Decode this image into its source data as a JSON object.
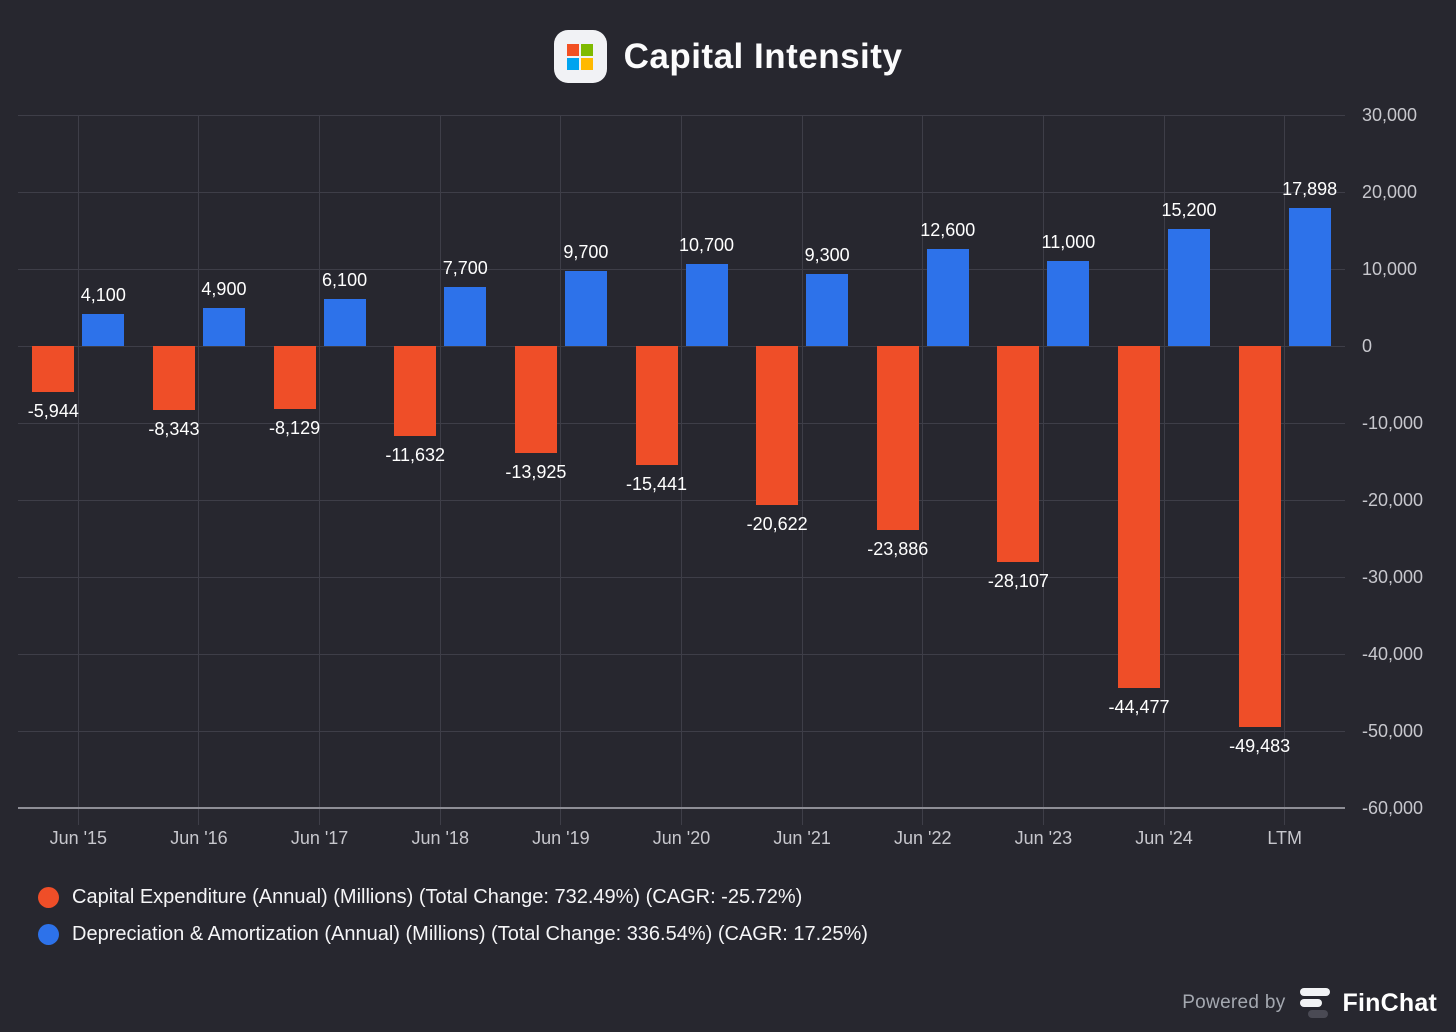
{
  "header": {
    "title": "Capital Intensity",
    "app_icon": "microsoft-logo"
  },
  "colors": {
    "background": "#27272f",
    "grid": "#3e3e48",
    "axis_line": "#8e8e96",
    "axis_text": "#c7c7cd",
    "bar_label_text": "#ffffff",
    "capex_orange": "#ef4e28",
    "da_blue": "#2d72ea",
    "ms_red": "#f25022",
    "ms_green": "#7fba00",
    "ms_blue": "#00a4ef",
    "ms_yellow": "#ffb900"
  },
  "chart_data": {
    "type": "bar",
    "title": "Capital Intensity",
    "categories": [
      "Jun '15",
      "Jun '16",
      "Jun '17",
      "Jun '18",
      "Jun '19",
      "Jun '20",
      "Jun '21",
      "Jun '22",
      "Jun '23",
      "Jun '24",
      "LTM"
    ],
    "series": [
      {
        "name": "Capital Expenditure (Annual) (Millions) (Total Change: 732.49%) (CAGR: -25.72%)",
        "color": "#ef4e28",
        "values": [
          -5944,
          -8343,
          -8129,
          -11632,
          -13925,
          -15441,
          -20622,
          -23886,
          -28107,
          -44477,
          -49483
        ],
        "labels": [
          "-5,944",
          "-8,343",
          "-8,129",
          "-11,632",
          "-13,925",
          "-15,441",
          "-20,622",
          "-23,886",
          "-28,107",
          "-44,477",
          "-49,483"
        ]
      },
      {
        "name": "Depreciation & Amortization (Annual) (Millions) (Total Change: 336.54%) (CAGR: 17.25%)",
        "color": "#2d72ea",
        "values": [
          4100,
          4900,
          6100,
          7700,
          9700,
          10700,
          9300,
          12600,
          11000,
          15200,
          17898
        ],
        "labels": [
          "4,100",
          "4,900",
          "6,100",
          "7,700",
          "9,700",
          "10,700",
          "9,300",
          "12,600",
          "11,000",
          "15,200",
          "17,898"
        ]
      }
    ],
    "ylim": [
      -60000,
      30000
    ],
    "ytick_step": 10000,
    "ytick_labels": [
      "30,000",
      "20,000",
      "10,000",
      "0",
      "-10,000",
      "-20,000",
      "-30,000",
      "-40,000",
      "-50,000",
      "-60,000"
    ],
    "grid": true,
    "legend_position": "bottom-left"
  },
  "footer": {
    "powered_by": "Powered by",
    "brand": "FinChat"
  }
}
